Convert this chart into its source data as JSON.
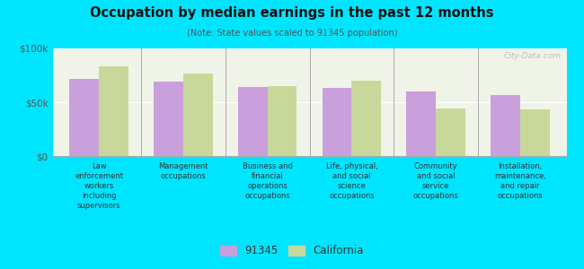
{
  "title": "Occupation by median earnings in the past 12 months",
  "subtitle": "(Note: State values scaled to 91345 population)",
  "categories": [
    "Law\nenforcement\nworkers\nincluding\nsupervisors",
    "Management\noccupations",
    "Business and\nfinancial\noperations\noccupations",
    "Life, physical,\nand social\nscience\noccupations",
    "Community\nand social\nservice\noccupations",
    "Installation,\nmaintenance,\nand repair\noccupations"
  ],
  "values_91345": [
    72000,
    69000,
    64000,
    63000,
    60000,
    57000
  ],
  "values_california": [
    83000,
    77000,
    65000,
    70000,
    44000,
    43000
  ],
  "color_91345": "#c9a0dc",
  "color_california": "#c8d89a",
  "background_color": "#00e5ff",
  "plot_bg_color": "#f0f4e8",
  "ylim": [
    0,
    100000
  ],
  "yticks": [
    0,
    50000,
    100000
  ],
  "ytick_labels": [
    "$0",
    "$50k",
    "$100k"
  ],
  "legend_label_91345": "91345",
  "legend_label_california": "California",
  "watermark": "City-Data.com"
}
